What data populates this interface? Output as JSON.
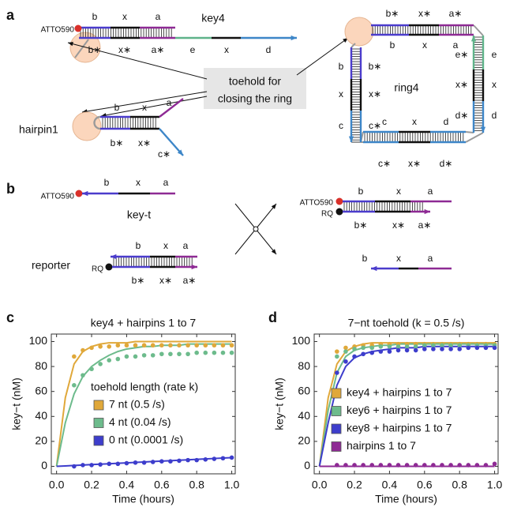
{
  "panel_labels": [
    "a",
    "b",
    "c",
    "d"
  ],
  "panel_a": {
    "key4": {
      "dye": "ATTO590",
      "top": [
        "b",
        "x",
        "a"
      ],
      "name": "key4",
      "bottom": [
        "b∗",
        "x∗",
        "a∗",
        "e",
        "x",
        "d"
      ]
    },
    "callout": [
      "toehold for",
      "closing the ring"
    ],
    "hairpin1": {
      "name": "hairpin1",
      "top": [
        "b",
        "x",
        "a"
      ],
      "bottom": [
        "b∗",
        "x∗",
        "c∗"
      ]
    },
    "ring4": {
      "name": "ring4",
      "top_outer": [
        "b∗",
        "x∗",
        "a∗"
      ],
      "top_inner": [
        "b",
        "x",
        "a"
      ],
      "right_inner": [
        "e∗",
        "x∗",
        "d∗"
      ],
      "right_outer": [
        "e",
        "x",
        "d"
      ],
      "bottom_inner": [
        "c",
        "x",
        "d"
      ],
      "bottom_outer": [
        "c∗",
        "x∗",
        "d∗"
      ],
      "left_outer": [
        "b",
        "x",
        "c"
      ],
      "left_inner": [
        "b∗",
        "x∗",
        "c∗"
      ]
    }
  },
  "panel_b": {
    "key_t": {
      "dye": "ATTO590",
      "strand": [
        "b",
        "x",
        "a"
      ],
      "name": "key-t"
    },
    "reporter": {
      "name": "reporter",
      "quencher": "RQ",
      "top": [
        "b",
        "x",
        "a"
      ],
      "bottom": [
        "b∗",
        "x∗",
        "a∗"
      ]
    },
    "product_duplex": {
      "dye": "ATTO590",
      "quencher": "RQ",
      "top": [
        "b",
        "x",
        "a"
      ],
      "bottom": [
        "b∗",
        "x∗",
        "a∗"
      ]
    },
    "product_strand": [
      "b",
      "x",
      "a"
    ]
  },
  "chart_data": [
    {
      "type": "scatter",
      "title": "key4 + hairpins 1 to 7",
      "x_label": "Time (hours)",
      "y_label": "key−t (nM)",
      "xlim": [
        -0.03,
        1.02
      ],
      "ylim": [
        -6,
        106
      ],
      "xticks": [
        {
          "value": 0,
          "label": "0.0"
        },
        0.2,
        0.4,
        0.6,
        0.8,
        {
          "value": 1,
          "label": "1.0"
        }
      ],
      "yticks": [
        0,
        20,
        40,
        60,
        80,
        100
      ],
      "grid": false,
      "legend": "center",
      "legend_title": "toehold length (rate k)",
      "x": [
        0.1,
        0.15,
        0.2,
        0.25,
        0.3,
        0.35,
        0.4,
        0.45,
        0.5,
        0.55,
        0.6,
        0.65,
        0.7,
        0.75,
        0.8,
        0.85,
        0.9,
        0.95,
        1.0
      ],
      "fit_x": [
        0,
        0.05,
        0.1,
        0.15,
        0.2,
        0.25,
        0.3,
        0.35,
        0.4,
        0.45,
        0.5,
        0.55,
        0.6,
        0.65,
        0.7,
        0.75,
        0.8,
        0.85,
        0.9,
        0.95,
        1.0
      ],
      "series": [
        {
          "name": "7 nt (0.5 /s)",
          "color": "#e0a83a",
          "values": [
            88,
            93,
            95,
            96,
            96,
            97,
            97,
            97,
            97,
            97,
            97,
            97,
            97,
            97,
            97,
            97,
            97,
            97,
            97
          ],
          "fit": [
            0,
            55,
            82,
            92,
            96,
            98,
            99,
            99,
            99,
            100,
            100,
            100,
            100,
            100,
            100,
            100,
            100,
            100,
            100,
            100,
            100
          ]
        },
        {
          "name": "4 nt (0.04 /s)",
          "color": "#6dbb8c",
          "values": [
            65,
            73,
            78,
            82,
            85,
            86,
            88,
            88,
            89,
            89,
            90,
            90,
            90,
            90,
            91,
            91,
            91,
            91,
            91
          ],
          "fit": [
            0,
            35,
            58,
            72,
            80,
            85,
            89,
            92,
            94,
            95,
            96,
            96,
            97,
            97,
            97,
            98,
            98,
            98,
            98,
            98,
            98
          ]
        },
        {
          "name": "0 nt (0.0001 /s)",
          "color": "#3d3dcc",
          "values": [
            0,
            1,
            1,
            1.5,
            2,
            2,
            2.5,
            3,
            3,
            3.5,
            4,
            4,
            4.5,
            5,
            5,
            5.5,
            6,
            6.5,
            7
          ],
          "fit": [
            0,
            0.35,
            0.7,
            1.05,
            1.4,
            1.75,
            2.1,
            2.45,
            2.8,
            3.15,
            3.5,
            3.85,
            4.2,
            4.55,
            4.9,
            5.25,
            5.6,
            5.95,
            6.3,
            6.65,
            7
          ]
        }
      ]
    },
    {
      "type": "scatter",
      "title": "7−nt toehold (k = 0.5 /s)",
      "x_label": "Time (hours)",
      "y_label": "key−t (nM)",
      "xlim": [
        -0.03,
        1.02
      ],
      "ylim": [
        -6,
        106
      ],
      "xticks": [
        {
          "value": 0,
          "label": "0.0"
        },
        0.2,
        0.4,
        0.6,
        0.8,
        {
          "value": 1,
          "label": "1.0"
        }
      ],
      "yticks": [
        0,
        20,
        40,
        60,
        80,
        100
      ],
      "grid": false,
      "legend": "lower right",
      "x": [
        0.1,
        0.15,
        0.2,
        0.25,
        0.3,
        0.35,
        0.4,
        0.45,
        0.5,
        0.55,
        0.6,
        0.65,
        0.7,
        0.75,
        0.8,
        0.85,
        0.9,
        0.95,
        1.0
      ],
      "fit_x": [
        0,
        0.05,
        0.1,
        0.15,
        0.2,
        0.25,
        0.3,
        0.35,
        0.4,
        0.45,
        0.5,
        0.55,
        0.6,
        0.65,
        0.7,
        0.75,
        0.8,
        0.85,
        0.9,
        0.95,
        1.0
      ],
      "series": [
        {
          "name": "key4 + hairpins 1 to 7",
          "color": "#e0a83a",
          "values": [
            92,
            95,
            96,
            97,
            97,
            98,
            98,
            98,
            98,
            98,
            98,
            98,
            98,
            98,
            98,
            98,
            98,
            98,
            98
          ],
          "fit": [
            0,
            55,
            82,
            92,
            96,
            98,
            99,
            99,
            99,
            99,
            99,
            99,
            99,
            99,
            99,
            99,
            99,
            99,
            99,
            99,
            99
          ]
        },
        {
          "name": "key6 + hairpins 1 to 7",
          "color": "#6dbb8c",
          "values": [
            88,
            92,
            94,
            95,
            95,
            96,
            96,
            96,
            96,
            96,
            97,
            97,
            97,
            97,
            97,
            97,
            97,
            97,
            97
          ],
          "fit": [
            0,
            45,
            75,
            88,
            93,
            95,
            96,
            97,
            97,
            98,
            98,
            98,
            98,
            98,
            98,
            98,
            98,
            98,
            98,
            98,
            98
          ]
        },
        {
          "name": "key8 + hairpins 1 to 7",
          "color": "#3d3dcc",
          "values": [
            75,
            84,
            88,
            90,
            91,
            92,
            92,
            93,
            93,
            93,
            94,
            94,
            94,
            94,
            94,
            95,
            95,
            95,
            95
          ],
          "fit": [
            0,
            35,
            65,
            80,
            87,
            90,
            92,
            93,
            94,
            95,
            95,
            95,
            96,
            96,
            96,
            96,
            96,
            96,
            96,
            96,
            96
          ]
        },
        {
          "name": "hairpins 1 to 7",
          "color": "#8e2a94",
          "values": [
            1,
            1,
            1,
            1,
            1,
            1,
            1,
            1,
            1,
            1,
            1,
            1,
            1,
            1,
            1,
            1,
            1,
            1,
            2
          ],
          "fit": [
            0,
            0,
            0,
            0,
            0,
            0,
            0,
            0,
            0,
            0,
            0,
            0,
            0,
            0,
            0,
            0,
            0,
            0,
            0,
            0,
            0
          ]
        }
      ]
    }
  ]
}
